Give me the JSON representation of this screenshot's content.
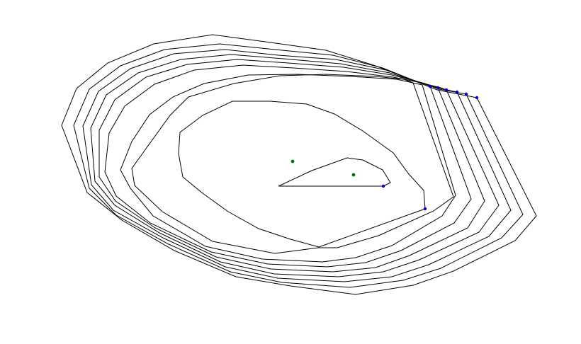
{
  "diagram": {
    "kind": "nested polygon contours (convex-layer style)",
    "background_color": "#ffffff",
    "line_color": "#000000",
    "vertex_marker_color": "#0000cc",
    "interior_point_color": "#007700",
    "contour_count": 9,
    "marked_vertex_count": 8,
    "interior_point_count": 2
  }
}
